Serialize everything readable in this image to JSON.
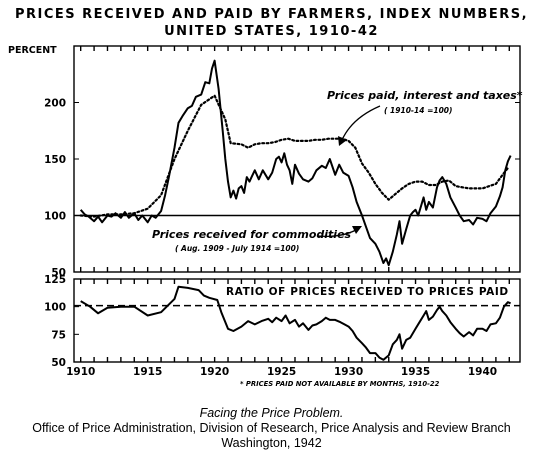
{
  "title_line1": "PRICES RECEIVED AND PAID BY FARMERS, INDEX NUMBERS,",
  "title_line2": "UNITED STATES, 1910-42",
  "caption_line1": "Facing the Price Problem.",
  "caption_line2": "Office of Price Administration, Division of Research, Price Analysis and Review Branch",
  "caption_line3": "Washington, 1942",
  "footnote": "* PRICES PAID NOT AVAILABLE BY MONTHS, 1910-22",
  "chart_data": [
    {
      "type": "line",
      "panel": "upper",
      "ylabel": "PERCENT",
      "ylim": [
        50,
        250
      ],
      "yticks": [
        50,
        100,
        150,
        200
      ],
      "xlim": [
        1909.5,
        1942.8
      ],
      "grid": false,
      "series": [
        {
          "name": "Prices paid, interest and taxes*",
          "note": "(1910-14 = 100)",
          "style": "dotted",
          "points": [
            [
              1910.0,
              100
            ],
            [
              1911.0,
              99
            ],
            [
              1912.0,
              101
            ],
            [
              1913.0,
              101
            ],
            [
              1914.0,
              102
            ],
            [
              1915.0,
              106
            ],
            [
              1916.0,
              118
            ],
            [
              1917.0,
              150
            ],
            [
              1918.0,
              175
            ],
            [
              1919.0,
              198
            ],
            [
              1920.0,
              206
            ],
            [
              1920.8,
              185
            ],
            [
              1921.2,
              164
            ],
            [
              1922.0,
              163
            ],
            [
              1922.5,
              160
            ],
            [
              1923.0,
              163
            ],
            [
              1923.5,
              164
            ],
            [
              1924.0,
              164
            ],
            [
              1924.5,
              165
            ],
            [
              1925.0,
              167
            ],
            [
              1925.5,
              168
            ],
            [
              1926.0,
              166
            ],
            [
              1926.5,
              166
            ],
            [
              1927.0,
              166
            ],
            [
              1927.5,
              167
            ],
            [
              1928.0,
              167
            ],
            [
              1928.5,
              168
            ],
            [
              1929.0,
              168
            ],
            [
              1929.5,
              168
            ],
            [
              1930.0,
              166
            ],
            [
              1930.5,
              160
            ],
            [
              1931.0,
              146
            ],
            [
              1931.5,
              138
            ],
            [
              1932.0,
              128
            ],
            [
              1932.5,
              120
            ],
            [
              1933.0,
              114
            ],
            [
              1933.5,
              119
            ],
            [
              1934.0,
              124
            ],
            [
              1934.5,
              128
            ],
            [
              1935.0,
              130
            ],
            [
              1935.5,
              130
            ],
            [
              1936.0,
              127
            ],
            [
              1936.5,
              127
            ],
            [
              1937.0,
              130
            ],
            [
              1937.5,
              131
            ],
            [
              1938.0,
              126
            ],
            [
              1938.5,
              125
            ],
            [
              1939.0,
              124
            ],
            [
              1939.5,
              124
            ],
            [
              1940.0,
              124
            ],
            [
              1940.5,
              126
            ],
            [
              1941.0,
              128
            ],
            [
              1941.5,
              136
            ],
            [
              1941.9,
              142
            ]
          ]
        },
        {
          "name": "Prices received for commodities",
          "note": "(Aug. 1909 - July 1914 = 100)",
          "style": "solid",
          "points": [
            [
              1910.0,
              105
            ],
            [
              1910.3,
              101
            ],
            [
              1910.6,
              99
            ],
            [
              1911.0,
              95
            ],
            [
              1911.3,
              99
            ],
            [
              1911.6,
              94
            ],
            [
              1912.0,
              100
            ],
            [
              1912.3,
              99
            ],
            [
              1912.6,
              102
            ],
            [
              1913.0,
              98
            ],
            [
              1913.3,
              103
            ],
            [
              1913.6,
              98
            ],
            [
              1914.0,
              102
            ],
            [
              1914.3,
              96
            ],
            [
              1914.6,
              100
            ],
            [
              1915.0,
              94
            ],
            [
              1915.3,
              100
            ],
            [
              1915.6,
              98
            ],
            [
              1916.0,
              104
            ],
            [
              1916.3,
              118
            ],
            [
              1916.6,
              135
            ],
            [
              1917.0,
              160
            ],
            [
              1917.3,
              182
            ],
            [
              1917.6,
              188
            ],
            [
              1918.0,
              195
            ],
            [
              1918.3,
              197
            ],
            [
              1918.6,
              205
            ],
            [
              1919.0,
              207
            ],
            [
              1919.3,
              218
            ],
            [
              1919.6,
              217
            ],
            [
              1919.8,
              230
            ],
            [
              1920.0,
              237
            ],
            [
              1920.3,
              212
            ],
            [
              1920.6,
              175
            ],
            [
              1920.8,
              150
            ],
            [
              1921.0,
              130
            ],
            [
              1921.2,
              116
            ],
            [
              1921.4,
              122
            ],
            [
              1921.6,
              115
            ],
            [
              1921.8,
              124
            ],
            [
              1922.0,
              126
            ],
            [
              1922.2,
              120
            ],
            [
              1922.4,
              134
            ],
            [
              1922.6,
              130
            ],
            [
              1922.8,
              135
            ],
            [
              1923.0,
              140
            ],
            [
              1923.3,
              132
            ],
            [
              1923.6,
              140
            ],
            [
              1924.0,
              132
            ],
            [
              1924.3,
              138
            ],
            [
              1924.6,
              150
            ],
            [
              1924.8,
              152
            ],
            [
              1925.0,
              147
            ],
            [
              1925.2,
              155
            ],
            [
              1925.4,
              145
            ],
            [
              1925.6,
              140
            ],
            [
              1925.8,
              128
            ],
            [
              1926.0,
              145
            ],
            [
              1926.3,
              137
            ],
            [
              1926.6,
              132
            ],
            [
              1927.0,
              130
            ],
            [
              1927.3,
              133
            ],
            [
              1927.6,
              140
            ],
            [
              1928.0,
              144
            ],
            [
              1928.3,
              142
            ],
            [
              1928.6,
              150
            ],
            [
              1929.0,
              136
            ],
            [
              1929.3,
              145
            ],
            [
              1929.6,
              138
            ],
            [
              1930.0,
              135
            ],
            [
              1930.3,
              125
            ],
            [
              1930.6,
              112
            ],
            [
              1931.0,
              100
            ],
            [
              1931.3,
              90
            ],
            [
              1931.6,
              80
            ],
            [
              1932.0,
              75
            ],
            [
              1932.3,
              68
            ],
            [
              1932.6,
              58
            ],
            [
              1932.8,
              62
            ],
            [
              1933.0,
              56
            ],
            [
              1933.3,
              68
            ],
            [
              1933.6,
              83
            ],
            [
              1933.8,
              95
            ],
            [
              1934.0,
              75
            ],
            [
              1934.3,
              88
            ],
            [
              1934.6,
              100
            ],
            [
              1934.8,
              103
            ],
            [
              1935.0,
              105
            ],
            [
              1935.2,
              100
            ],
            [
              1935.4,
              108
            ],
            [
              1935.6,
              116
            ],
            [
              1935.8,
              105
            ],
            [
              1936.0,
              112
            ],
            [
              1936.3,
              107
            ],
            [
              1936.6,
              125
            ],
            [
              1936.8,
              131
            ],
            [
              1937.0,
              134
            ],
            [
              1937.3,
              128
            ],
            [
              1937.6,
              116
            ],
            [
              1938.0,
              107
            ],
            [
              1938.3,
              100
            ],
            [
              1938.6,
              95
            ],
            [
              1939.0,
              96
            ],
            [
              1939.3,
              92
            ],
            [
              1939.6,
              98
            ],
            [
              1940.0,
              97
            ],
            [
              1940.3,
              95
            ],
            [
              1940.6,
              102
            ],
            [
              1941.0,
              108
            ],
            [
              1941.3,
              117
            ],
            [
              1941.5,
              125
            ],
            [
              1941.7,
              140
            ],
            [
              1941.9,
              148
            ],
            [
              1942.1,
              153
            ]
          ]
        },
        {
          "name": "Base",
          "style": "solid-reference",
          "points": [
            [
              1909.5,
              100
            ],
            [
              1942.8,
              100
            ]
          ]
        }
      ]
    },
    {
      "type": "line",
      "panel": "lower",
      "title": "RATIO OF PRICES RECEIVED TO PRICES PAID",
      "ylim": [
        50,
        125
      ],
      "yticks": [
        50,
        75,
        100,
        125
      ],
      "xlim": [
        1909.5,
        1942.8
      ],
      "xticks": [
        1910,
        1915,
        1920,
        1925,
        1930,
        1935,
        1940
      ],
      "grid": false,
      "series": [
        {
          "name": "Ratio",
          "style": "solid",
          "points": [
            [
              1910.0,
              105
            ],
            [
              1910.7,
              100
            ],
            [
              1911.3,
              94
            ],
            [
              1912.0,
              99
            ],
            [
              1913.0,
              100
            ],
            [
              1914.0,
              100
            ],
            [
              1915.0,
              92
            ],
            [
              1916.0,
              95
            ],
            [
              1917.0,
              107
            ],
            [
              1917.3,
              118
            ],
            [
              1918.0,
              117
            ],
            [
              1918.8,
              115
            ],
            [
              1919.2,
              110
            ],
            [
              1919.6,
              108
            ],
            [
              1920.2,
              106
            ],
            [
              1920.5,
              95
            ],
            [
              1921.0,
              80
            ],
            [
              1921.4,
              78
            ],
            [
              1922.0,
              82
            ],
            [
              1922.5,
              87
            ],
            [
              1923.0,
              84
            ],
            [
              1923.5,
              87
            ],
            [
              1924.0,
              89
            ],
            [
              1924.3,
              86
            ],
            [
              1924.6,
              90
            ],
            [
              1925.0,
              87
            ],
            [
              1925.3,
              92
            ],
            [
              1925.6,
              85
            ],
            [
              1926.0,
              88
            ],
            [
              1926.3,
              82
            ],
            [
              1926.6,
              85
            ],
            [
              1927.0,
              79
            ],
            [
              1927.3,
              83
            ],
            [
              1927.6,
              84
            ],
            [
              1928.0,
              87
            ],
            [
              1928.3,
              90
            ],
            [
              1928.6,
              88
            ],
            [
              1929.0,
              88
            ],
            [
              1929.4,
              86
            ],
            [
              1929.7,
              84
            ],
            [
              1930.0,
              82
            ],
            [
              1930.3,
              78
            ],
            [
              1930.6,
              72
            ],
            [
              1931.0,
              67
            ],
            [
              1931.3,
              63
            ],
            [
              1931.6,
              58
            ],
            [
              1932.0,
              58
            ],
            [
              1932.3,
              54
            ],
            [
              1932.6,
              52
            ],
            [
              1933.0,
              56
            ],
            [
              1933.3,
              66
            ],
            [
              1933.6,
              70
            ],
            [
              1933.8,
              75
            ],
            [
              1934.0,
              62
            ],
            [
              1934.3,
              70
            ],
            [
              1934.6,
              72
            ],
            [
              1935.0,
              80
            ],
            [
              1935.3,
              86
            ],
            [
              1935.6,
              92
            ],
            [
              1935.8,
              96
            ],
            [
              1936.0,
              88
            ],
            [
              1936.3,
              91
            ],
            [
              1936.6,
              97
            ],
            [
              1936.8,
              100
            ],
            [
              1937.0,
              96
            ],
            [
              1937.3,
              92
            ],
            [
              1937.6,
              86
            ],
            [
              1938.0,
              80
            ],
            [
              1938.3,
              76
            ],
            [
              1938.6,
              73
            ],
            [
              1939.0,
              77
            ],
            [
              1939.3,
              74
            ],
            [
              1939.6,
              80
            ],
            [
              1940.0,
              80
            ],
            [
              1940.3,
              78
            ],
            [
              1940.6,
              84
            ],
            [
              1941.0,
              85
            ],
            [
              1941.3,
              90
            ],
            [
              1941.6,
              100
            ],
            [
              1941.9,
              104
            ],
            [
              1942.1,
              103
            ]
          ]
        },
        {
          "name": "Parity",
          "style": "dashed",
          "points": [
            [
              1909.5,
              101
            ],
            [
              1942.8,
              101
            ]
          ]
        }
      ]
    }
  ],
  "annotations": {
    "paid_label": "Prices paid, interest and taxes*",
    "paid_note": "( 1910-14 =100)",
    "received_label": "Prices received for commodities",
    "received_note": "( Aug. 1909 - July 1914 =100)"
  }
}
